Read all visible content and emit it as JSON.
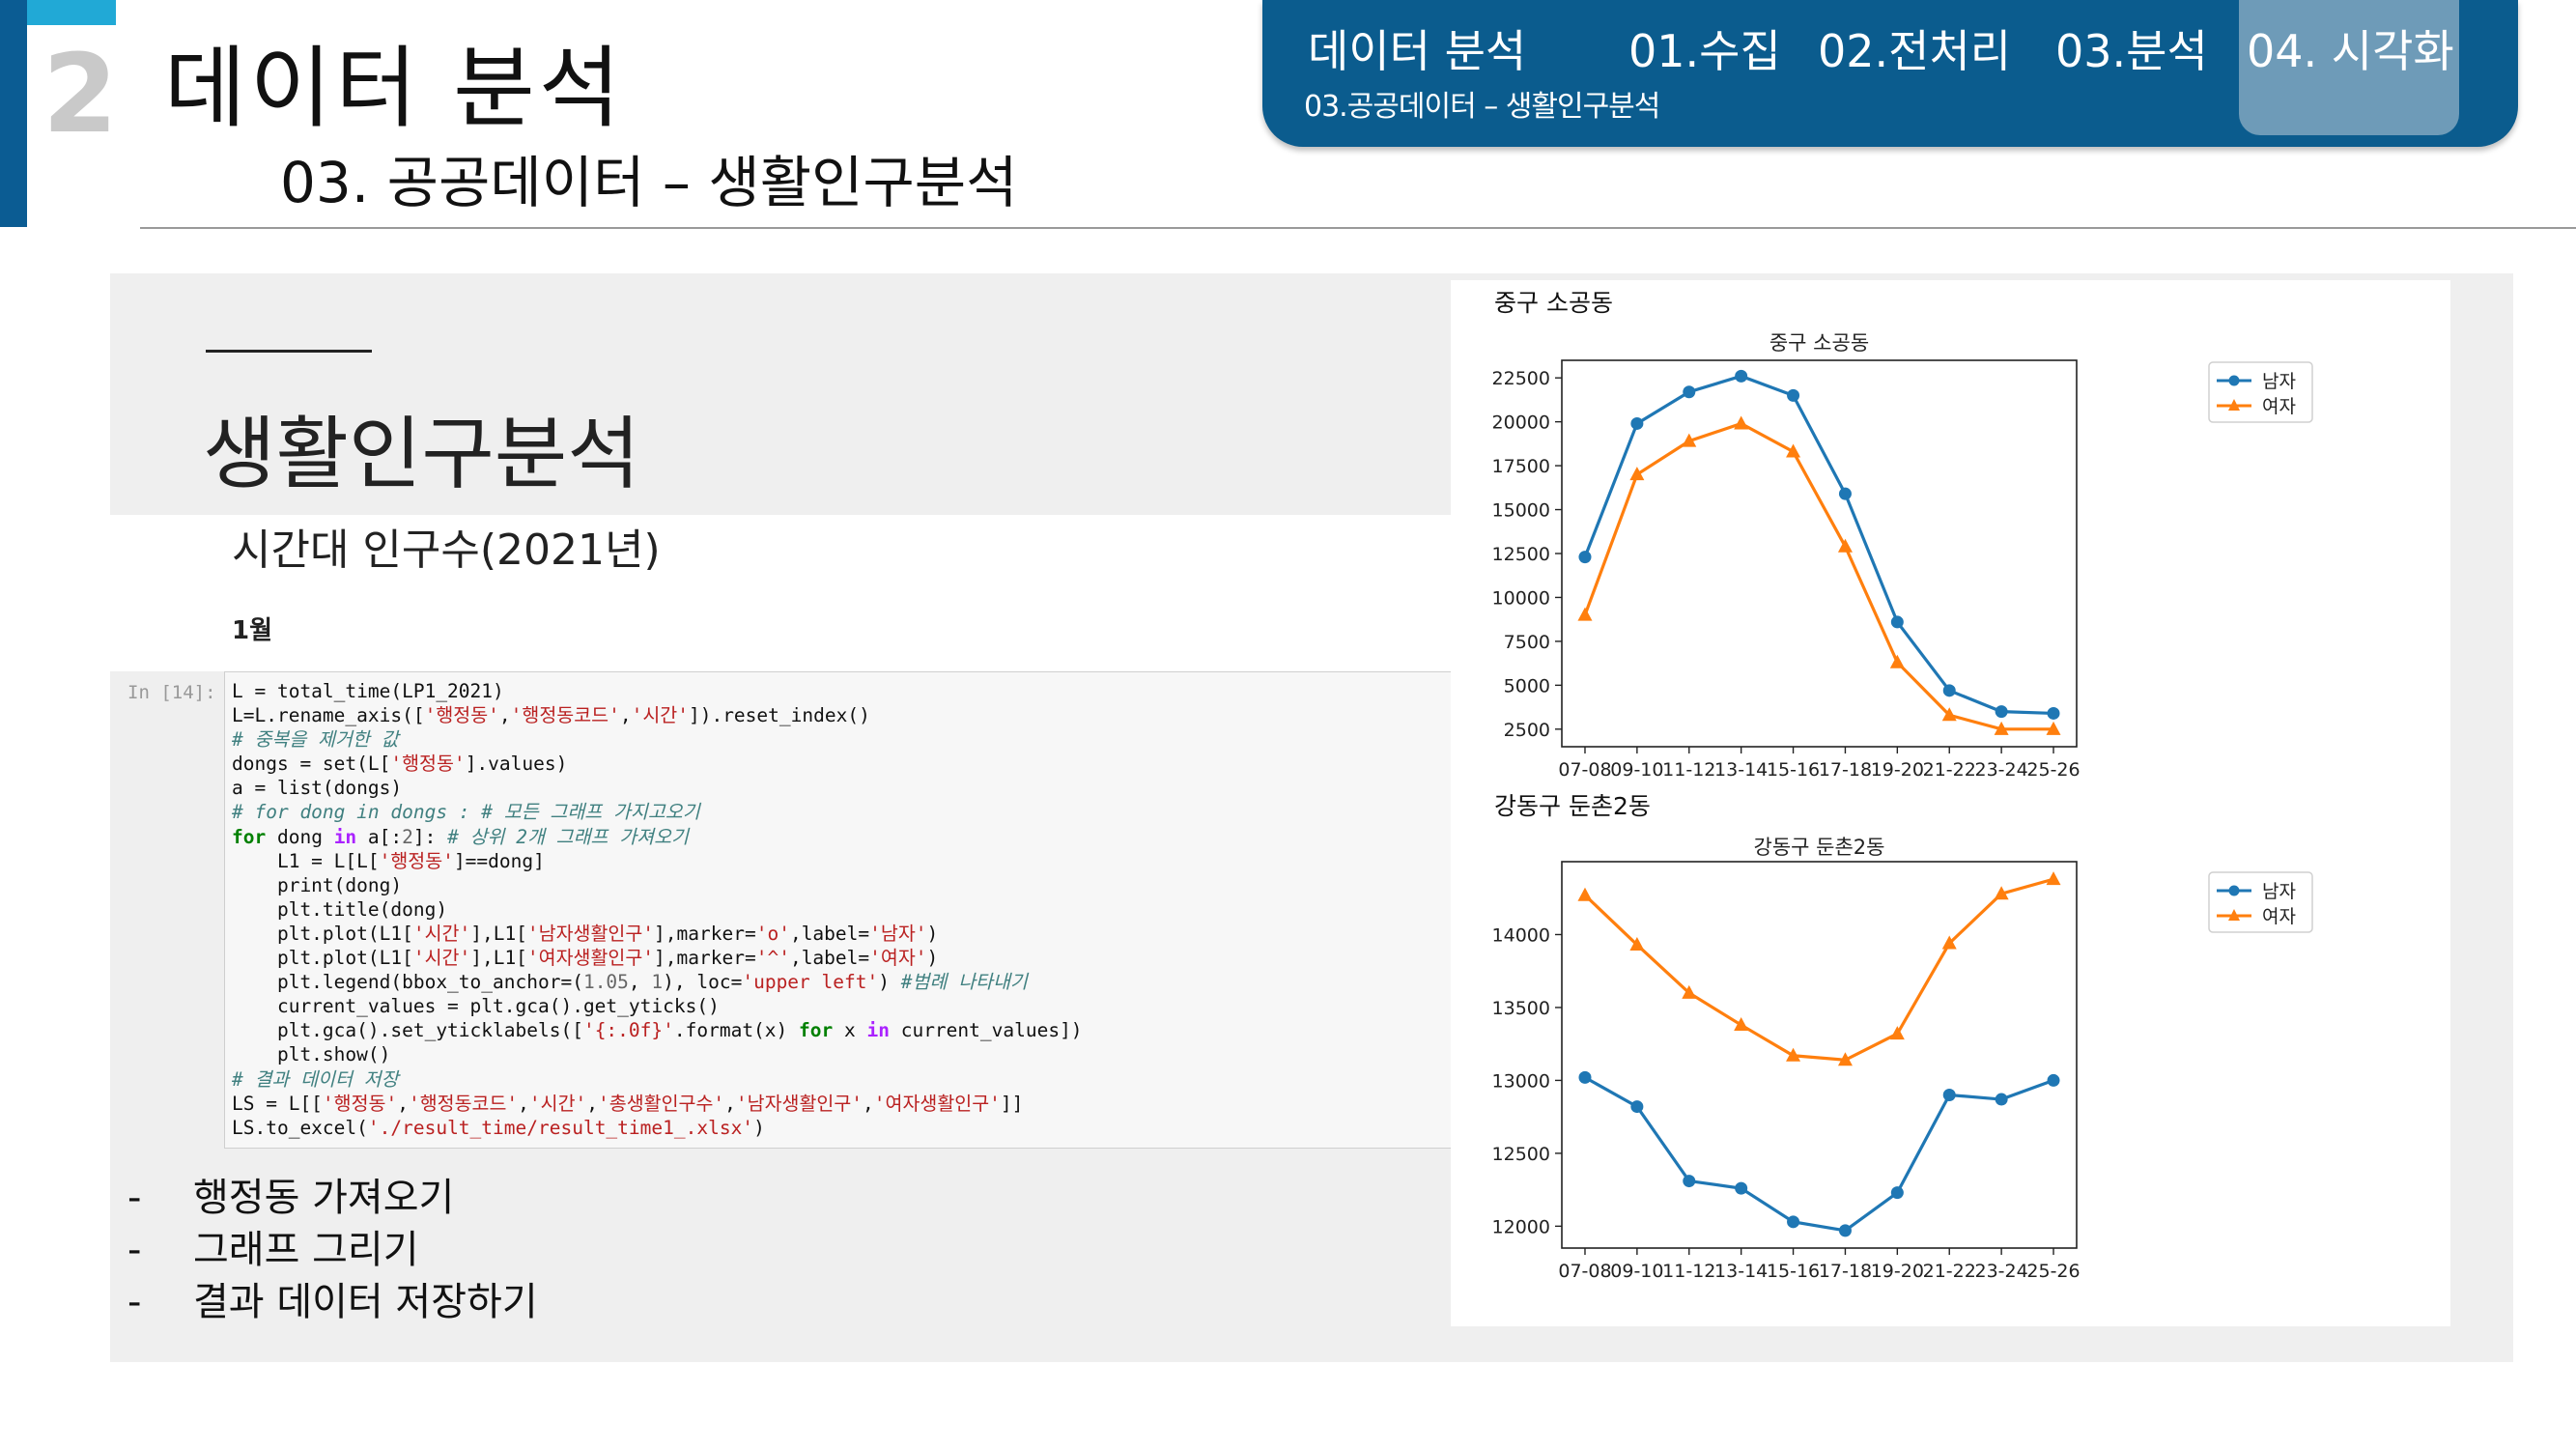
{
  "header": {
    "section_number": "2",
    "section_title": "데이터  분석",
    "section_subtitle": "03. 공공데이터 – 생활인구분석"
  },
  "nav": {
    "title": "데이터 분석",
    "items": [
      "01.수집",
      "02.전처리",
      "03.분석",
      "04. 시각화"
    ],
    "active_index": 3,
    "subtitle": "03.공공데이터 – 생활인구분석"
  },
  "content": {
    "title": "생활인구분석",
    "notebook_heading": "시간대 인구수(2021년)",
    "notebook_month": "1월",
    "cell_prompt": "In [14]:",
    "code_lines": [
      "L = total_time(LP1_2021)",
      "L=L.rename_axis(['행정동','행정동코드','시간']).reset_index()",
      "# 중복을 제거한 값",
      "dongs = set(L['행정동'].values)",
      "a = list(dongs)",
      "# for dong in dongs : # 모든 그래프 가지고오기",
      "for dong in a[:2]: # 상위 2개 그래프 가져오기",
      "    L1 = L[L['행정동']==dong]",
      "    print(dong)",
      "    plt.title(dong)",
      "    plt.plot(L1['시간'],L1['남자생활인구'],marker='o',label='남자')",
      "    plt.plot(L1['시간'],L1['여자생활인구'],marker='^',label='여자')",
      "    plt.legend(bbox_to_anchor=(1.05, 1), loc='upper left') #범례 나타내기",
      "    current_values = plt.gca().get_yticks()",
      "    plt.gca().set_yticklabels(['{:.0f}'.format(x) for x in current_values])",
      "    plt.show()",
      "# 결과 데이터 저장",
      "LS = L[['행정동','행정동코드','시간','총생활인구수','남자생활인구','여자생활인구']]",
      "LS.to_excel('./result_time/result_time1_.xlsx')"
    ],
    "bullets": [
      "행정동 가져오기",
      "그래프 그리기",
      "결과 데이터 저장하기"
    ]
  },
  "colors": {
    "nav_bg": "#0b5c8e",
    "accent_blue": "#21a9d6",
    "series_male": "#1f77b4",
    "series_female": "#ff7f0e"
  },
  "chart_data": [
    {
      "type": "line",
      "printed_name": "중구 소공동",
      "title": "중구 소공동",
      "categories": [
        "07-08",
        "09-10",
        "11-12",
        "13-14",
        "15-16",
        "17-18",
        "19-20",
        "21-22",
        "23-24",
        "25-26"
      ],
      "series": [
        {
          "name": "남자",
          "marker": "o",
          "color": "#1f77b4",
          "values": [
            12300,
            19900,
            21700,
            22600,
            21500,
            15900,
            8600,
            4700,
            3500,
            3400
          ]
        },
        {
          "name": "여자",
          "marker": "^",
          "color": "#ff7f0e",
          "values": [
            9000,
            17000,
            18900,
            19900,
            18300,
            12900,
            6300,
            3300,
            2500,
            2500
          ]
        }
      ],
      "yticks": [
        2500,
        5000,
        7500,
        10000,
        12500,
        15000,
        17500,
        20000,
        22500
      ],
      "ylim": [
        1500,
        23500
      ],
      "legend": "outside-upper-left",
      "grid": false
    },
    {
      "type": "line",
      "printed_name": "강동구 둔촌2동",
      "title": "강동구 둔촌2동",
      "categories": [
        "07-08",
        "09-10",
        "11-12",
        "13-14",
        "15-16",
        "17-18",
        "19-20",
        "21-22",
        "23-24",
        "25-26"
      ],
      "series": [
        {
          "name": "남자",
          "marker": "o",
          "color": "#1f77b4",
          "values": [
            13020,
            12820,
            12310,
            12260,
            12030,
            11970,
            12230,
            12900,
            12870,
            13000
          ]
        },
        {
          "name": "여자",
          "marker": "^",
          "color": "#ff7f0e",
          "values": [
            14270,
            13930,
            13600,
            13380,
            13170,
            13140,
            13320,
            13940,
            14280,
            14380
          ]
        }
      ],
      "yticks": [
        12000,
        12500,
        13000,
        13500,
        14000
      ],
      "ylim": [
        11850,
        14500
      ],
      "legend": "outside-upper-left",
      "grid": false
    }
  ]
}
